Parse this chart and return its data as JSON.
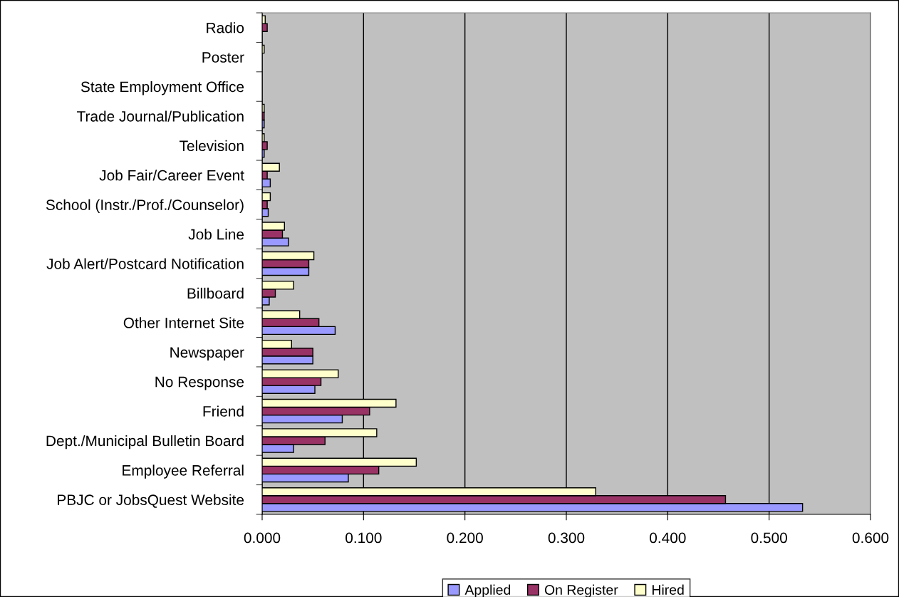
{
  "chart_data": {
    "type": "bar",
    "orientation": "horizontal",
    "categories": [
      "Radio",
      "Poster",
      "State Employment Office",
      "Trade Journal/Publication",
      "Television",
      "Job Fair/Career Event",
      "School (Instr./Prof./Counselor)",
      "Job Line",
      "Job Alert/Postcard Notification",
      "Billboard",
      "Other Internet Site",
      "Newspaper",
      "No Response",
      "Friend",
      "Dept./Municipal Bulletin Board",
      "Employee Referral",
      "PBJC or JobsQuest Website"
    ],
    "series": [
      {
        "name": "Applied",
        "color": "#9999ff",
        "values": [
          null,
          null,
          null,
          0.002,
          0.002,
          0.008,
          0.006,
          0.026,
          0.046,
          0.007,
          0.072,
          0.05,
          0.052,
          0.079,
          0.031,
          0.085,
          0.533
        ]
      },
      {
        "name": "On Register",
        "color": "#993366",
        "values": [
          0.005,
          null,
          null,
          0.002,
          0.005,
          0.005,
          0.005,
          0.02,
          0.046,
          0.013,
          0.056,
          0.05,
          0.058,
          0.106,
          0.062,
          0.115,
          0.457
        ]
      },
      {
        "name": "Hired",
        "color": "#ffffcc",
        "values": [
          0.003,
          0.002,
          null,
          0.002,
          0.002,
          0.017,
          0.008,
          0.022,
          0.051,
          0.031,
          0.037,
          0.029,
          0.075,
          0.132,
          0.113,
          0.152,
          0.329
        ]
      }
    ],
    "xlim": [
      0,
      0.6
    ],
    "xticks": [
      {
        "value": 0,
        "label": "0.000"
      },
      {
        "value": 0.1,
        "label": "0.100"
      },
      {
        "value": 0.2,
        "label": "0.200"
      },
      {
        "value": 0.3,
        "label": "0.300"
      },
      {
        "value": 0.4,
        "label": "0.400"
      },
      {
        "value": 0.5,
        "label": "0.500"
      },
      {
        "value": 0.6,
        "label": "0.600"
      }
    ],
    "grid": "x",
    "legend": "bottom"
  }
}
